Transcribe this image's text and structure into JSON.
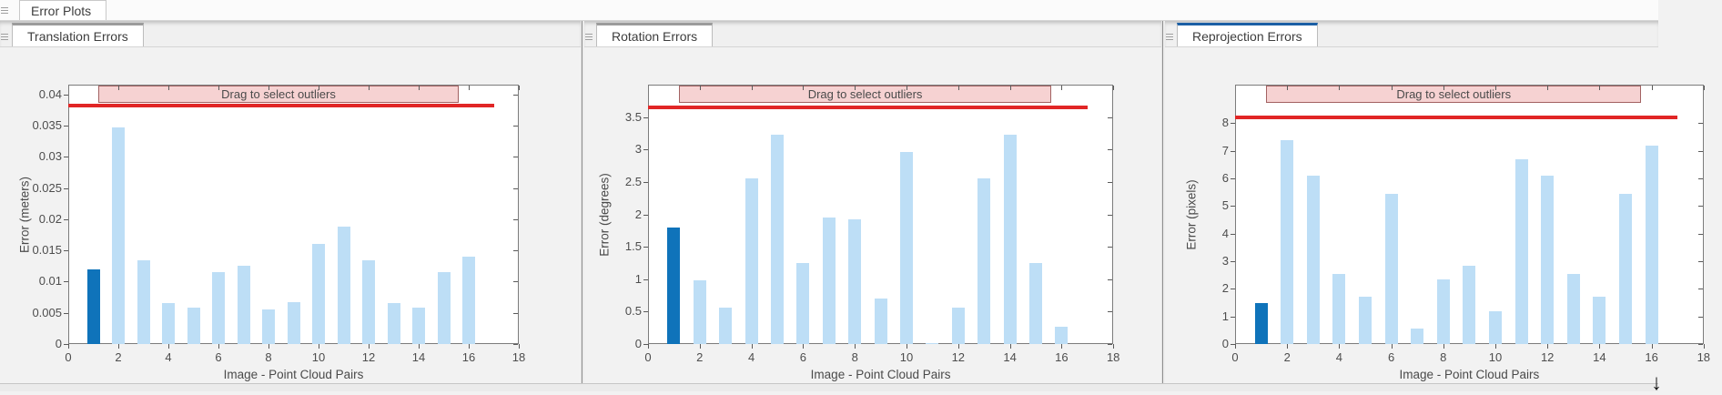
{
  "window": {
    "doc_tab_label": "Error Plots"
  },
  "panels": [
    {
      "tab_label": "Translation Errors",
      "active": false
    },
    {
      "tab_label": "Rotation Errors",
      "active": false
    },
    {
      "tab_label": "Reprojection Errors",
      "active": true
    }
  ],
  "colors": {
    "bar": "#bddef6",
    "bar_highlight": "#0f73ba",
    "threshold_line": "#e12626",
    "band_fill": "#f6d2d2",
    "band_border": "#a26262",
    "active_tab_accent": "#1b5fa5",
    "inactive_tab_accent": "#9b9b9b"
  },
  "icons": {
    "dock_arrow": "↓"
  },
  "chart_data": [
    {
      "type": "bar",
      "title": "Translation Errors",
      "xlabel": "Image - Point Cloud Pairs",
      "ylabel": "Error (meters)",
      "categories": [
        1,
        2,
        3,
        4,
        5,
        6,
        7,
        8,
        9,
        10,
        11,
        12,
        13,
        14,
        15,
        16
      ],
      "values": [
        0.012,
        0.0347,
        0.0135,
        0.0066,
        0.0058,
        0.0116,
        0.0126,
        0.0056,
        0.0067,
        0.016,
        0.0189,
        0.0135,
        0.0066,
        0.0058,
        0.0116,
        0.014
      ],
      "highlighted_bar": 1,
      "xlim": [
        0,
        18
      ],
      "ylim": [
        0,
        0.0416
      ],
      "xticks": [
        0,
        2,
        4,
        6,
        8,
        10,
        12,
        14,
        16,
        18
      ],
      "yticks": [
        0,
        0.005,
        0.01,
        0.015,
        0.02,
        0.025,
        0.03,
        0.035,
        0.04
      ],
      "ytick_labels": [
        "0",
        "0.005",
        "0.01",
        "0.015",
        "0.02",
        "0.025",
        "0.03",
        "0.035",
        "0.04"
      ],
      "threshold": 0.0383,
      "threshold_x_end": 17,
      "band": {
        "label": "Drag to select outliers",
        "x_start": 1.2,
        "x_end": 15.6
      },
      "grid": false,
      "legend": null
    },
    {
      "type": "bar",
      "title": "Rotation Errors",
      "xlabel": "Image - Point Cloud Pairs",
      "ylabel": "Error (degrees)",
      "categories": [
        1,
        2,
        3,
        4,
        5,
        6,
        7,
        8,
        9,
        10,
        11,
        12,
        13,
        14,
        15,
        16
      ],
      "values": [
        1.8,
        0.98,
        0.56,
        2.56,
        3.23,
        1.25,
        1.95,
        1.92,
        0.7,
        2.96,
        0.02,
        0.56,
        2.56,
        3.23,
        1.25,
        0.26
      ],
      "highlighted_bar": 1,
      "xlim": [
        0,
        18
      ],
      "ylim": [
        0,
        4.0
      ],
      "xticks": [
        0,
        2,
        4,
        6,
        8,
        10,
        12,
        14,
        16,
        18
      ],
      "yticks": [
        0,
        0.5,
        1,
        1.5,
        2,
        2.5,
        3,
        3.5
      ],
      "ytick_labels": [
        "0",
        "0.5",
        "1",
        "1.5",
        "2",
        "2.5",
        "3",
        "3.5"
      ],
      "threshold": 3.65,
      "threshold_x_end": 17,
      "band": {
        "label": "Drag to select outliers",
        "x_start": 1.2,
        "x_end": 15.6
      },
      "grid": false,
      "legend": null
    },
    {
      "type": "bar",
      "title": "Reprojection Errors",
      "xlabel": "Image - Point Cloud Pairs",
      "ylabel": "Error (pixels)",
      "categories": [
        1,
        2,
        3,
        4,
        5,
        6,
        7,
        8,
        9,
        10,
        11,
        12,
        13,
        14,
        15,
        16
      ],
      "values": [
        1.5,
        7.4,
        6.1,
        2.55,
        1.7,
        5.45,
        0.55,
        2.35,
        2.85,
        1.2,
        6.7,
        6.1,
        2.55,
        1.7,
        5.45,
        7.2
      ],
      "highlighted_bar": 1,
      "xlim": [
        0,
        18
      ],
      "ylim": [
        0,
        9.4
      ],
      "xticks": [
        0,
        2,
        4,
        6,
        8,
        10,
        12,
        14,
        16,
        18
      ],
      "yticks": [
        0,
        1,
        2,
        3,
        4,
        5,
        6,
        7,
        8
      ],
      "ytick_labels": [
        "0",
        "1",
        "2",
        "3",
        "4",
        "5",
        "6",
        "7",
        "8"
      ],
      "threshold": 8.2,
      "threshold_x_end": 17,
      "band": {
        "label": "Drag to select outliers",
        "x_start": 1.2,
        "x_end": 15.6
      },
      "grid": false,
      "legend": null
    }
  ]
}
